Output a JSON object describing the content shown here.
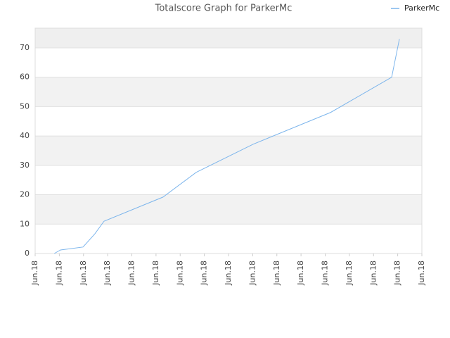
{
  "chart_data": {
    "type": "line",
    "title": "Totalscore Graph for ParkerMc",
    "x": [
      0.79,
      1.05,
      1.98,
      2.47,
      2.85,
      5.29,
      6.66,
      9.02,
      12.22,
      14.75,
      15.07
    ],
    "series": [
      {
        "name": "ParkerMc",
        "color": "#7cb5ec",
        "values": [
          0,
          1.2,
          2.2,
          6.7,
          11,
          19.2,
          27.6,
          37.2,
          48,
          60,
          73
        ]
      }
    ],
    "xlim": [
      0,
      16
    ],
    "xticks": [
      {
        "value": 0,
        "label": "Jun.18"
      },
      {
        "value": 1,
        "label": "Jun.18"
      },
      {
        "value": 2,
        "label": "Jun.18"
      },
      {
        "value": 3,
        "label": "Jun.18"
      },
      {
        "value": 4,
        "label": "Jun.18"
      },
      {
        "value": 5,
        "label": "Jun.18"
      },
      {
        "value": 6,
        "label": "Jun.18"
      },
      {
        "value": 7,
        "label": "Jun.18"
      },
      {
        "value": 8,
        "label": "Jun.18"
      },
      {
        "value": 9,
        "label": "Jun.18"
      },
      {
        "value": 10,
        "label": "Jun.18"
      },
      {
        "value": 11,
        "label": "Jun.18"
      },
      {
        "value": 12,
        "label": "Jun.18"
      },
      {
        "value": 13,
        "label": "Jun.18"
      },
      {
        "value": 14,
        "label": "Jun.18"
      },
      {
        "value": 15,
        "label": "Jun.18"
      },
      {
        "value": 16,
        "label": "Jun.18"
      }
    ],
    "ylim": [
      0,
      76.7
    ],
    "yticks": [
      0,
      10,
      20,
      30,
      40,
      50,
      60,
      70
    ],
    "grid": true,
    "legend": "top-right"
  }
}
